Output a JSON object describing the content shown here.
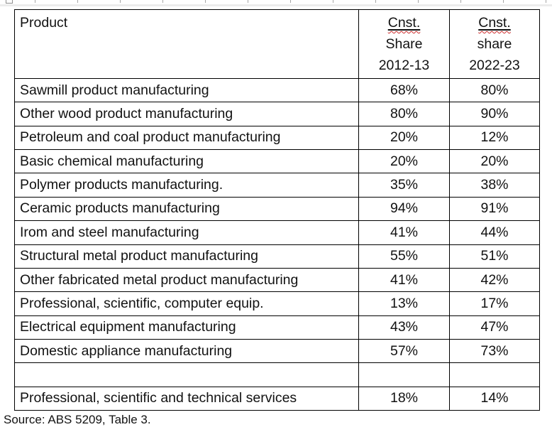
{
  "table": {
    "header": {
      "product": "Product",
      "col_2012": {
        "abbr": "Cnst.",
        "line2": "Share",
        "line3": "2012-13"
      },
      "col_2022": {
        "abbr": "Cnst.",
        "line2": "share",
        "line3": "2022-23"
      }
    },
    "rows": [
      {
        "product": "Sawmill product manufacturing",
        "s2012": "68%",
        "s2022": "80%"
      },
      {
        "product": "Other wood product manufacturing",
        "s2012": "80%",
        "s2022": "90%"
      },
      {
        "product": "Petroleum and coal product manufacturing",
        "s2012": "20%",
        "s2022": "12%"
      },
      {
        "product": "Basic chemical manufacturing",
        "s2012": "20%",
        "s2022": "20%"
      },
      {
        "product": "Polymer products manufacturing.",
        "s2012": "35%",
        "s2022": "38%"
      },
      {
        "product": "Ceramic products manufacturing",
        "s2012": "94%",
        "s2022": "91%"
      },
      {
        "product": "Irom and steel manufacturing",
        "s2012": "41%",
        "s2022": "44%"
      },
      {
        "product": "Structural metal product manufacturing",
        "s2012": "55%",
        "s2022": "51%"
      },
      {
        "product": "Other fabricated metal product manufacturing",
        "s2012": "41%",
        "s2022": "42%"
      },
      {
        "product": "Professional, scientific, computer equip.",
        "s2012": "13%",
        "s2022": "17%"
      },
      {
        "product": "Electrical equipment manufacturing",
        "s2012": "43%",
        "s2022": "47%"
      },
      {
        "product": "Domestic appliance manufacturing",
        "s2012": "57%",
        "s2022": "73%"
      },
      {
        "product": "",
        "s2012": "",
        "s2022": ""
      },
      {
        "product": "Professional, scientific and technical services",
        "s2012": "18%",
        "s2022": "14%"
      }
    ]
  },
  "source_note": "Source: ABS 5209, Table 3.",
  "colors": {
    "table_border": "#000000",
    "text": "#121212",
    "spellcheck_red": "#cc2b2b",
    "ruler_tick": "#a6a6a6"
  },
  "chart_data": {
    "type": "table",
    "title": "Construction share by product",
    "columns": [
      "Product",
      "Cnst. Share 2012-13",
      "Cnst. share 2022-23"
    ],
    "rows": [
      [
        "Sawmill product manufacturing",
        68,
        80
      ],
      [
        "Other wood product manufacturing",
        80,
        90
      ],
      [
        "Petroleum and coal product manufacturing",
        20,
        12
      ],
      [
        "Basic chemical manufacturing",
        20,
        20
      ],
      [
        "Polymer products manufacturing.",
        35,
        38
      ],
      [
        "Ceramic products manufacturing",
        94,
        91
      ],
      [
        "Irom and steel manufacturing",
        41,
        44
      ],
      [
        "Structural metal product manufacturing",
        55,
        51
      ],
      [
        "Other fabricated metal product manufacturing",
        41,
        42
      ],
      [
        "Professional, scientific, computer equip.",
        13,
        17
      ],
      [
        "Electrical equipment manufacturing",
        43,
        47
      ],
      [
        "Domestic appliance manufacturing",
        57,
        73
      ],
      [
        "Professional, scientific and technical services",
        18,
        14
      ]
    ],
    "units": "percent",
    "source": "Source: ABS 5209, Table 3."
  }
}
